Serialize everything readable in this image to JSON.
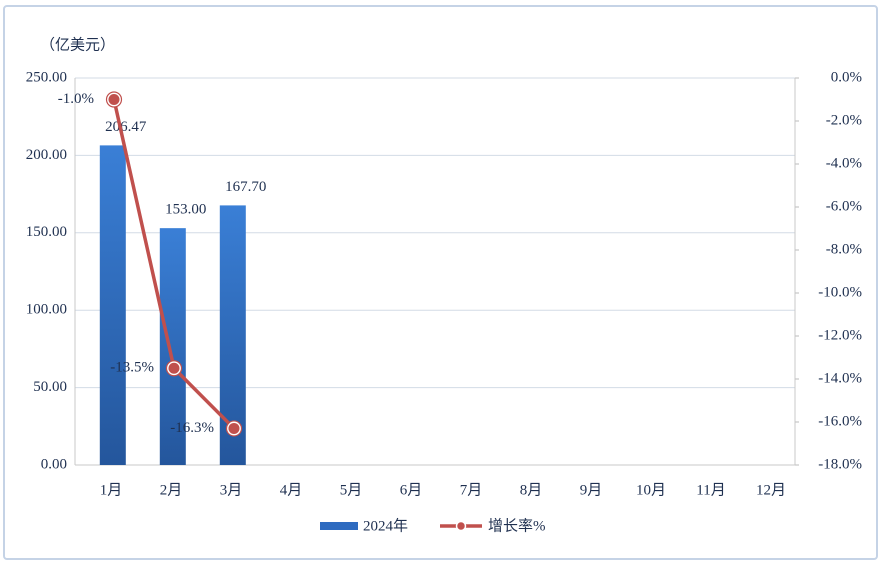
{
  "chart_data": {
    "type": "bar-line",
    "unit_label": "（亿美元）",
    "categories": [
      "1月",
      "2月",
      "3月",
      "4月",
      "5月",
      "6月",
      "7月",
      "8月",
      "9月",
      "10月",
      "11月",
      "12月"
    ],
    "series": [
      {
        "name": "2024年",
        "type": "bar",
        "color": "#2e6bc0",
        "values": [
          206.47,
          153.0,
          167.7,
          null,
          null,
          null,
          null,
          null,
          null,
          null,
          null,
          null
        ],
        "value_labels": [
          "206.47",
          "153.00",
          "167.70",
          null,
          null,
          null,
          null,
          null,
          null,
          null,
          null,
          null
        ]
      },
      {
        "name": "增长率%",
        "type": "line",
        "axis": "y2",
        "color": "#c0504d",
        "values": [
          -1.0,
          -13.5,
          -16.3,
          null,
          null,
          null,
          null,
          null,
          null,
          null,
          null,
          null
        ],
        "value_labels": [
          "-1.0%",
          "-13.5%",
          "-16.3%",
          null,
          null,
          null,
          null,
          null,
          null,
          null,
          null,
          null
        ]
      }
    ],
    "ylim": [
      0,
      250
    ],
    "yticks": [
      {
        "value": 0,
        "label": "0.00"
      },
      {
        "value": 50,
        "label": "50.00"
      },
      {
        "value": 100,
        "label": "100.00"
      },
      {
        "value": 150,
        "label": "150.00"
      },
      {
        "value": 200,
        "label": "200.00"
      },
      {
        "value": 250,
        "label": "250.00"
      }
    ],
    "y2lim": [
      -18,
      0
    ],
    "y2ticks": [
      {
        "value": 0,
        "label": "0.0%"
      },
      {
        "value": -2,
        "label": "-2.0%"
      },
      {
        "value": -4,
        "label": "-4.0%"
      },
      {
        "value": -6,
        "label": "-6.0%"
      },
      {
        "value": -8,
        "label": "-8.0%"
      },
      {
        "value": -10,
        "label": "-10.0%"
      },
      {
        "value": -12,
        "label": "-12.0%"
      },
      {
        "value": -14,
        "label": "-14.0%"
      },
      {
        "value": -16,
        "label": "-16.0%"
      },
      {
        "value": -18,
        "label": "-18.0%"
      }
    ],
    "grid": true,
    "legend": "bottom"
  }
}
